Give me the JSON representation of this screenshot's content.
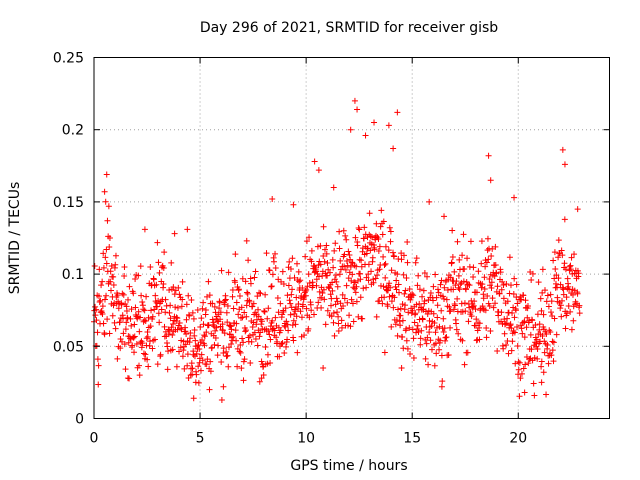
{
  "chart_data": {
    "type": "scatter",
    "title": "Day 296 of 2021, SRMTID for receiver gisb",
    "xlabel": "GPS time / hours",
    "ylabel": "SRMTID / TECUs",
    "xlim": [
      0,
      24.3
    ],
    "ylim": [
      0,
      0.25
    ],
    "x_ticks": [
      0,
      5,
      10,
      15,
      20
    ],
    "x_tick_labels": [
      "0",
      "5",
      "10",
      "15",
      "20"
    ],
    "y_ticks": [
      0,
      0.05,
      0.1,
      0.15,
      0.2,
      0.25
    ],
    "y_tick_labels": [
      "0",
      "0.05",
      "0.1",
      "0.15",
      "0.2",
      "0.25"
    ],
    "grid": true,
    "marker": "+",
    "color": "#ff0000",
    "series": [
      {
        "name": "SRMTID",
        "x_range": [
          0,
          22.9
        ],
        "x_step": 0.0167,
        "baseline_profile": [
          [
            0,
            0.06
          ],
          [
            0.5,
            0.085
          ],
          [
            0.7,
            0.1
          ],
          [
            1.0,
            0.075
          ],
          [
            2.0,
            0.065
          ],
          [
            3.0,
            0.075
          ],
          [
            4.0,
            0.07
          ],
          [
            4.5,
            0.05
          ],
          [
            5.5,
            0.06
          ],
          [
            6.5,
            0.065
          ],
          [
            8.0,
            0.07
          ],
          [
            9.5,
            0.08
          ],
          [
            10.5,
            0.095
          ],
          [
            11.5,
            0.085
          ],
          [
            12.0,
            0.095
          ],
          [
            13.0,
            0.11
          ],
          [
            14.0,
            0.1
          ],
          [
            15.0,
            0.075
          ],
          [
            16.0,
            0.065
          ],
          [
            17.0,
            0.085
          ],
          [
            18.0,
            0.08
          ],
          [
            18.7,
            0.095
          ],
          [
            19.5,
            0.075
          ],
          [
            20.5,
            0.055
          ],
          [
            21.3,
            0.06
          ],
          [
            22.0,
            0.095
          ],
          [
            22.9,
            0.085
          ]
        ],
        "spread": 0.018,
        "peaks": [
          {
            "x": 0.6,
            "y": 0.169
          },
          {
            "x": 0.5,
            "y": 0.157
          },
          {
            "x": 0.7,
            "y": 0.147
          },
          {
            "x": 2.4,
            "y": 0.131
          },
          {
            "x": 3.8,
            "y": 0.128
          },
          {
            "x": 4.4,
            "y": 0.131
          },
          {
            "x": 7.2,
            "y": 0.123
          },
          {
            "x": 8.4,
            "y": 0.152
          },
          {
            "x": 9.4,
            "y": 0.148
          },
          {
            "x": 10.4,
            "y": 0.178
          },
          {
            "x": 10.6,
            "y": 0.172
          },
          {
            "x": 11.3,
            "y": 0.16
          },
          {
            "x": 12.1,
            "y": 0.2
          },
          {
            "x": 12.3,
            "y": 0.22
          },
          {
            "x": 12.4,
            "y": 0.214
          },
          {
            "x": 12.8,
            "y": 0.196
          },
          {
            "x": 13.2,
            "y": 0.205
          },
          {
            "x": 13.9,
            "y": 0.203
          },
          {
            "x": 14.1,
            "y": 0.187
          },
          {
            "x": 14.3,
            "y": 0.212
          },
          {
            "x": 15.8,
            "y": 0.15
          },
          {
            "x": 16.5,
            "y": 0.14
          },
          {
            "x": 18.6,
            "y": 0.182
          },
          {
            "x": 18.7,
            "y": 0.165
          },
          {
            "x": 19.8,
            "y": 0.153
          },
          {
            "x": 22.1,
            "y": 0.186
          },
          {
            "x": 22.2,
            "y": 0.176
          },
          {
            "x": 22.8,
            "y": 0.145
          }
        ],
        "troughs": [
          {
            "x": 4.7,
            "y": 0.014
          },
          {
            "x": 4.8,
            "y": 0.025
          },
          {
            "x": 6.1,
            "y": 0.022
          },
          {
            "x": 1.6,
            "y": 0.028
          },
          {
            "x": 16.4,
            "y": 0.022
          },
          {
            "x": 20.1,
            "y": 0.028
          },
          {
            "x": 20.3,
            "y": 0.018
          },
          {
            "x": 21.1,
            "y": 0.025
          },
          {
            "x": 21.2,
            "y": 0.032
          },
          {
            "x": 7.9,
            "y": 0.028
          },
          {
            "x": 10.8,
            "y": 0.035
          },
          {
            "x": 14.5,
            "y": 0.035
          }
        ]
      }
    ]
  }
}
